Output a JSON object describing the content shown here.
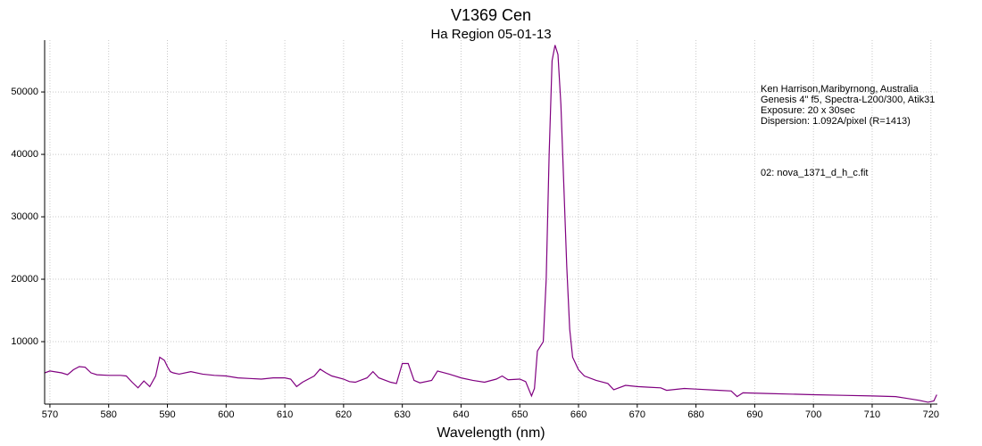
{
  "chart_data": {
    "type": "line",
    "title": "V1369 Cen",
    "subtitle": "Ha Region 05-01-13",
    "x_label": "Wavelength (nm)",
    "annotations": [
      "Ken Harrison,Maribyrnong, Australia",
      "Genesis 4\" f5, Spectra-L200/300, Atik31",
      "Exposure: 20 x 30sec",
      "Dispersion: 1.092A/pixel (R=1413)"
    ],
    "grid": true,
    "xlim": [
      569.1,
      721.1
    ],
    "ylim": [
      0,
      58300
    ],
    "xticks": [
      570,
      580,
      590,
      600,
      610,
      620,
      630,
      640,
      650,
      660,
      670,
      680,
      690,
      700,
      710,
      720
    ],
    "yticks": [
      10000,
      20000,
      30000,
      40000,
      50000
    ],
    "x": [
      569.1,
      570,
      572,
      573,
      574,
      575,
      576,
      577,
      578,
      580,
      582,
      583,
      584,
      585,
      586,
      587,
      588,
      588.7,
      589.5,
      590,
      590.5,
      591,
      592,
      594,
      596,
      598,
      600,
      602,
      604,
      606,
      608,
      610,
      611,
      612,
      613,
      615,
      616,
      617,
      618,
      620,
      621,
      622,
      624,
      625,
      626,
      628,
      629,
      630,
      631,
      632,
      633,
      635,
      636,
      638,
      640,
      642,
      644,
      646,
      647,
      648,
      650,
      651,
      652,
      652.5,
      653,
      654,
      654.5,
      655,
      655.5,
      656,
      656.5,
      657,
      657.5,
      658,
      658.5,
      659,
      660,
      661,
      663,
      665,
      666,
      668,
      670,
      672,
      674,
      675,
      678,
      680,
      684,
      686,
      687,
      688,
      692,
      696,
      700,
      705,
      710,
      714,
      716,
      718,
      719.5,
      720.5,
      721
    ],
    "series": [
      {
        "name": "02: nova_1371_d_h_c.fit",
        "color": "#800080",
        "values": [
          5000,
          5300,
          5000,
          4700,
          5500,
          6000,
          5900,
          5000,
          4700,
          4600,
          4600,
          4500,
          3500,
          2600,
          3700,
          2800,
          4500,
          7500,
          7000,
          6000,
          5200,
          5000,
          4800,
          5200,
          4800,
          4600,
          4500,
          4200,
          4100,
          4000,
          4200,
          4200,
          4000,
          2800,
          3500,
          4500,
          5600,
          5000,
          4500,
          4000,
          3600,
          3500,
          4200,
          5200,
          4200,
          3500,
          3300,
          6500,
          6500,
          3800,
          3400,
          3800,
          5300,
          4800,
          4200,
          3800,
          3500,
          4000,
          4500,
          3900,
          4000,
          3600,
          1300,
          2500,
          8500,
          10000,
          20000,
          40000,
          55000,
          57500,
          56000,
          48000,
          35000,
          22000,
          12000,
          7500,
          5500,
          4500,
          3800,
          3300,
          2300,
          3000,
          2800,
          2700,
          2600,
          2200,
          2500,
          2400,
          2200,
          2100,
          1200,
          1800,
          1700,
          1600,
          1500,
          1400,
          1300,
          1200,
          900,
          600,
          300,
          500,
          1500
        ]
      }
    ]
  }
}
